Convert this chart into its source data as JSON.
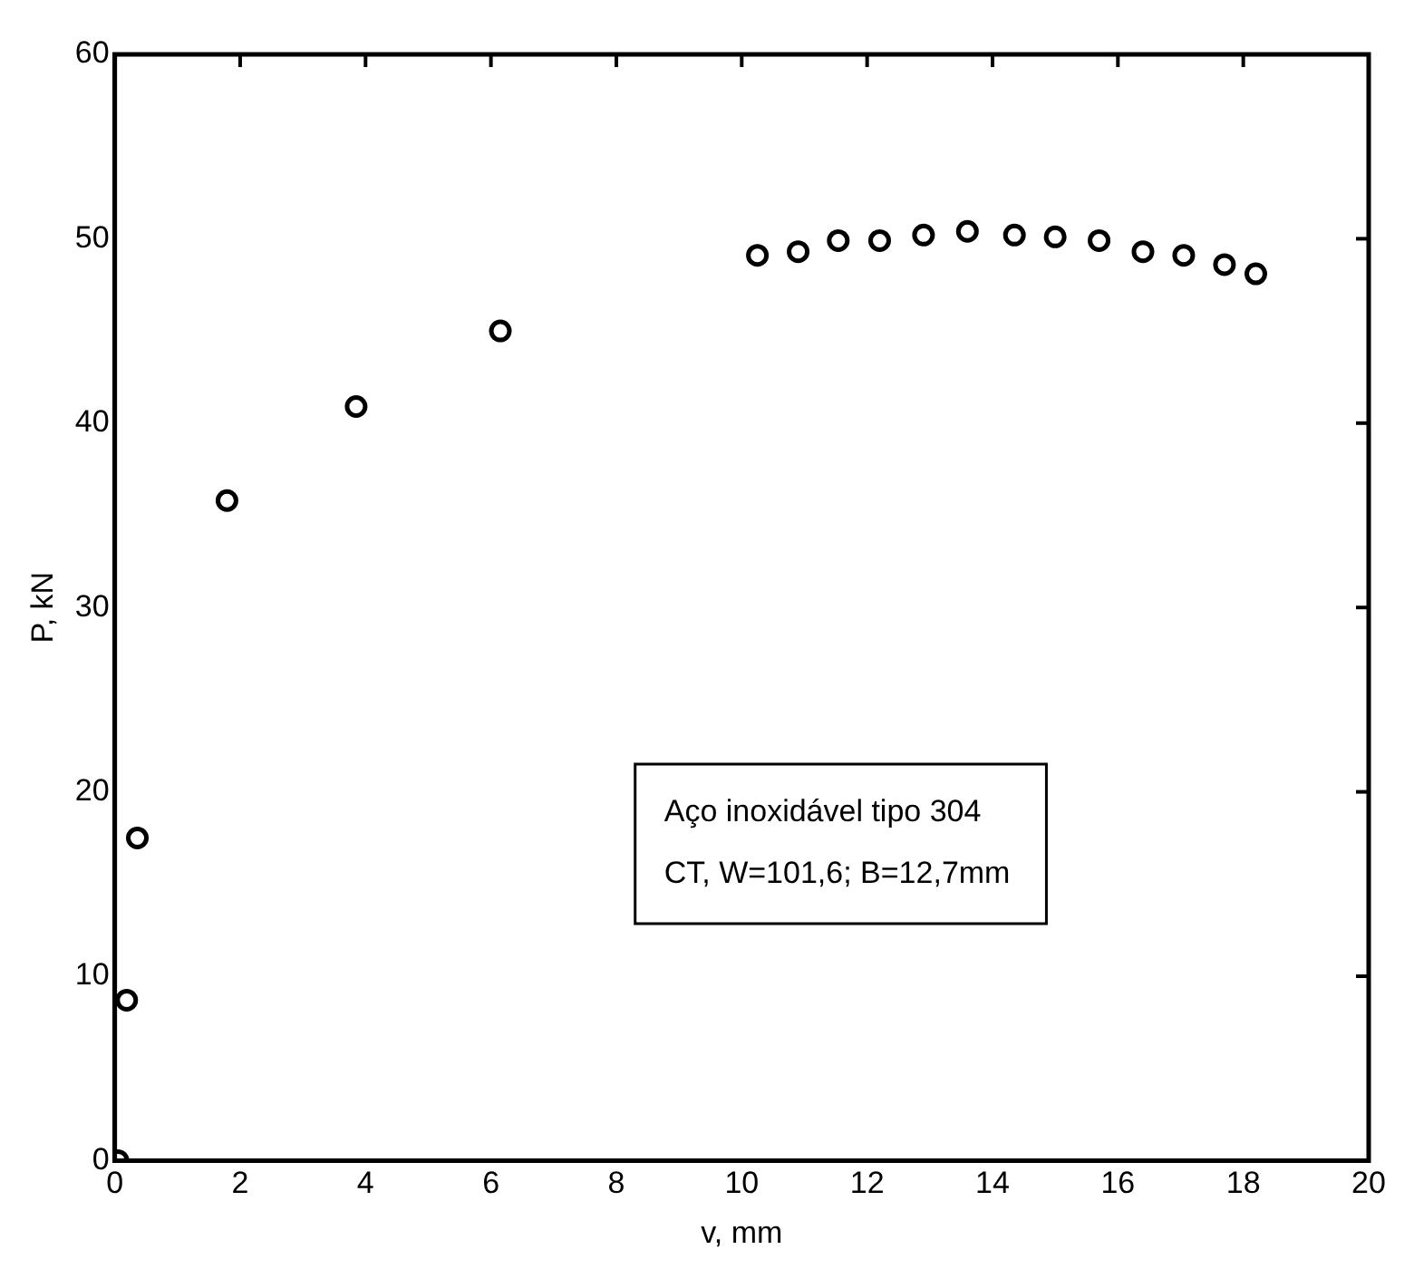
{
  "chart_data": {
    "type": "scatter",
    "xlabel": "v, mm",
    "ylabel": "P, kN",
    "x": [
      0.05,
      0.19,
      0.36,
      1.79,
      3.85,
      6.15,
      10.25,
      10.9,
      11.54,
      12.2,
      12.9,
      13.6,
      14.35,
      15.0,
      15.7,
      16.4,
      17.05,
      17.7,
      18.2
    ],
    "series": [
      {
        "color": "#000000",
        "values": [
          0,
          8.7,
          17.5,
          35.8,
          40.9,
          45,
          49.1,
          49.3,
          49.9,
          49.9,
          50.2,
          50.4,
          50.2,
          50.1,
          49.9,
          49.3,
          49.1,
          48.6,
          48.1
        ]
      }
    ],
    "xlim": [
      0,
      20
    ],
    "xticks": [
      0,
      2,
      4,
      6,
      8,
      10,
      12,
      14,
      16,
      18,
      20
    ],
    "ylim": [
      0,
      60
    ],
    "yticks": [
      0,
      10,
      20,
      30,
      40,
      50,
      60
    ],
    "annotations": [
      "Aço inoxidável tipo 304",
      "CT, W=101,6; B=12,7mm"
    ],
    "marker": "circle",
    "grid": false,
    "legend": false
  }
}
